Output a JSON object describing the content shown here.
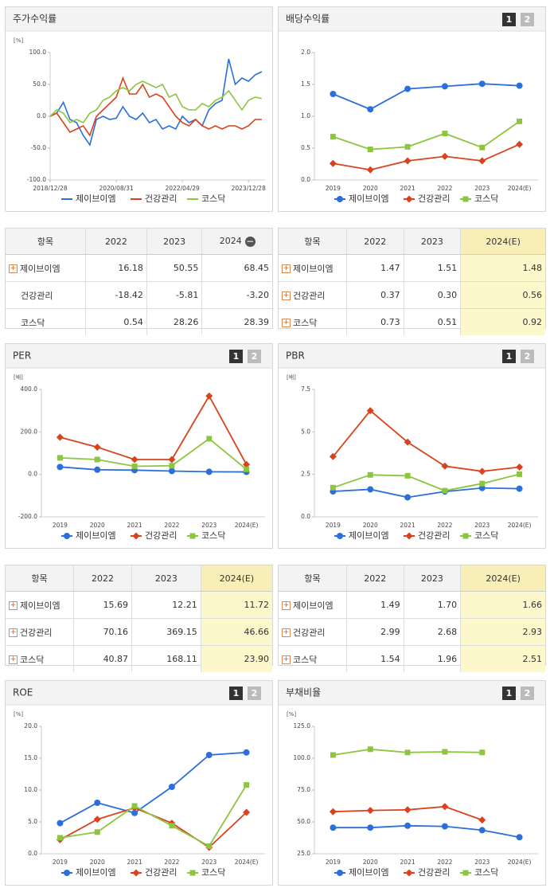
{
  "chart_data": [
    {
      "type": "line",
      "title": "주가수익률",
      "unit": "[%]",
      "xlim": [
        0,
        65
      ],
      "xticks": [
        {
          "value": 0,
          "label": "2018/12/28"
        },
        {
          "value": 20,
          "label": "2020/08/31"
        },
        {
          "value": 40,
          "label": "2022/04/29"
        },
        {
          "value": 60,
          "label": "2023/12/28"
        }
      ],
      "ylim": [
        -100,
        100
      ],
      "yticks": [
        {
          "value": 100,
          "label": "100.0"
        },
        {
          "value": 50,
          "label": "50.0"
        },
        {
          "value": 0,
          "label": "0.0"
        },
        {
          "value": -50,
          "label": "-50.0"
        },
        {
          "value": -100,
          "label": "-100.0"
        }
      ],
      "x": [
        0,
        2,
        4,
        6,
        8,
        10,
        12,
        14,
        16,
        18,
        20,
        22,
        24,
        26,
        28,
        30,
        32,
        34,
        36,
        38,
        40,
        42,
        44,
        46,
        48,
        50,
        52,
        54,
        56,
        58,
        60,
        62,
        64
      ],
      "series": [
        {
          "name": "제이브이엠",
          "color": "#2a6fdb",
          "values": [
            0,
            5,
            22,
            -5,
            -10,
            -30,
            -45,
            -5,
            0,
            -5,
            -3,
            15,
            0,
            -5,
            5,
            -10,
            -5,
            -20,
            -15,
            -20,
            0,
            -10,
            -5,
            -15,
            10,
            20,
            25,
            90,
            50,
            60,
            55,
            65,
            70
          ]
        },
        {
          "name": "건강관리",
          "color": "#d9421a",
          "values": [
            0,
            5,
            -10,
            -25,
            -20,
            -15,
            -30,
            0,
            10,
            20,
            30,
            60,
            35,
            35,
            50,
            30,
            35,
            30,
            15,
            0,
            -10,
            -15,
            -5,
            -15,
            -20,
            -15,
            -20,
            -15,
            -15,
            -20,
            -15,
            -5,
            -5
          ]
        },
        {
          "name": "코스닥",
          "color": "#8cc63f",
          "values": [
            0,
            10,
            5,
            -10,
            -5,
            -10,
            5,
            10,
            25,
            30,
            40,
            45,
            40,
            50,
            55,
            50,
            45,
            50,
            30,
            35,
            15,
            10,
            10,
            20,
            15,
            25,
            30,
            40,
            25,
            10,
            25,
            30,
            28
          ]
        }
      ]
    },
    {
      "type": "line",
      "title": "배당수익률",
      "buttons": [
        "1",
        "2"
      ],
      "unit": "",
      "categories": [
        "2019",
        "2020",
        "2021",
        "2022",
        "2023",
        "2024(E)"
      ],
      "ylim": [
        0,
        2
      ],
      "yticks": [
        {
          "value": 2,
          "label": "2.0"
        },
        {
          "value": 1.5,
          "label": "1.5"
        },
        {
          "value": 1,
          "label": "1.0"
        },
        {
          "value": 0.5,
          "label": "0.5"
        },
        {
          "value": 0,
          "label": "0.0"
        }
      ],
      "series": [
        {
          "name": "제이브이엠",
          "color": "#2a6fdb",
          "marker": "circle",
          "values": [
            1.35,
            1.11,
            1.43,
            1.47,
            1.51,
            1.48
          ]
        },
        {
          "name": "건강관리",
          "color": "#d9421a",
          "marker": "diamond",
          "values": [
            0.26,
            0.16,
            0.3,
            0.37,
            0.3,
            0.56
          ]
        },
        {
          "name": "코스닥",
          "color": "#8cc63f",
          "marker": "square",
          "values": [
            0.68,
            0.48,
            0.52,
            0.73,
            0.51,
            0.92
          ]
        }
      ]
    },
    {
      "type": "line",
      "title": "PER",
      "buttons": [
        "1",
        "2"
      ],
      "unit": "[배]",
      "categories": [
        "2019",
        "2020",
        "2021",
        "2022",
        "2023",
        "2024(E)"
      ],
      "ylim": [
        -200,
        400
      ],
      "yticks": [
        {
          "value": 400,
          "label": "400.0"
        },
        {
          "value": 200,
          "label": "200.0"
        },
        {
          "value": 0,
          "label": "0.0"
        },
        {
          "value": -200,
          "label": "-200.0"
        }
      ],
      "series": [
        {
          "name": "제이브이엠",
          "color": "#2a6fdb",
          "marker": "circle",
          "values": [
            35,
            22,
            20,
            15.69,
            12.21,
            11.72
          ]
        },
        {
          "name": "건강관리",
          "color": "#d9421a",
          "marker": "diamond",
          "values": [
            175,
            128,
            70,
            70.16,
            369.15,
            46.66
          ]
        },
        {
          "name": "코스닥",
          "color": "#8cc63f",
          "marker": "square",
          "values": [
            78,
            70,
            38,
            40.87,
            168.11,
            23.9
          ]
        }
      ]
    },
    {
      "type": "line",
      "title": "PBR",
      "buttons": [
        "1",
        "2"
      ],
      "unit": "[배]",
      "categories": [
        "2019",
        "2020",
        "2021",
        "2022",
        "2023",
        "2024(E)"
      ],
      "ylim": [
        0,
        7.5
      ],
      "yticks": [
        {
          "value": 7.5,
          "label": "7.5"
        },
        {
          "value": 5,
          "label": "5.0"
        },
        {
          "value": 2.5,
          "label": "2.5"
        },
        {
          "value": 0,
          "label": "0.0"
        }
      ],
      "series": [
        {
          "name": "제이브이엠",
          "color": "#2a6fdb",
          "marker": "circle",
          "values": [
            1.5,
            1.62,
            1.15,
            1.49,
            1.7,
            1.66
          ]
        },
        {
          "name": "건강관리",
          "color": "#d9421a",
          "marker": "diamond",
          "values": [
            3.55,
            6.25,
            4.4,
            2.99,
            2.68,
            2.93
          ]
        },
        {
          "name": "코스닥",
          "color": "#8cc63f",
          "marker": "square",
          "values": [
            1.72,
            2.47,
            2.42,
            1.54,
            1.96,
            2.51
          ]
        }
      ]
    },
    {
      "type": "line",
      "title": "ROE",
      "buttons": [
        "1",
        "2"
      ],
      "unit": "[%]",
      "categories": [
        "2019",
        "2020",
        "2021",
        "2022",
        "2023",
        "2024(E)"
      ],
      "ylim": [
        0,
        20
      ],
      "yticks": [
        {
          "value": 20,
          "label": "20.0"
        },
        {
          "value": 15,
          "label": "15.0"
        },
        {
          "value": 10,
          "label": "10.0"
        },
        {
          "value": 5,
          "label": "5.0"
        },
        {
          "value": 0,
          "label": "0.0"
        }
      ],
      "series": [
        {
          "name": "제이브이엠",
          "color": "#2a6fdb",
          "marker": "circle",
          "values": [
            4.8,
            8.0,
            6.4,
            10.5,
            15.5,
            15.9
          ]
        },
        {
          "name": "건강관리",
          "color": "#d9421a",
          "marker": "diamond",
          "values": [
            2.2,
            5.4,
            7.2,
            4.8,
            1.0,
            6.5
          ]
        },
        {
          "name": "코스닥",
          "color": "#8cc63f",
          "marker": "square",
          "values": [
            2.5,
            3.4,
            7.5,
            4.4,
            1.2,
            10.8
          ]
        }
      ]
    },
    {
      "type": "line",
      "title": "부채비율",
      "buttons": [
        "1",
        "2"
      ],
      "unit": "[%]",
      "categories": [
        "2019",
        "2020",
        "2021",
        "2022",
        "2023",
        "2024(E)"
      ],
      "ylim": [
        25,
        125
      ],
      "yticks": [
        {
          "value": 125,
          "label": "125.0"
        },
        {
          "value": 100,
          "label": "100.0"
        },
        {
          "value": 75,
          "label": "75.0"
        },
        {
          "value": 50,
          "label": "50.0"
        },
        {
          "value": 25,
          "label": "25.0"
        }
      ],
      "series": [
        {
          "name": "제이브이엠",
          "color": "#2a6fdb",
          "marker": "circle",
          "values": [
            45.5,
            45.5,
            47,
            46.5,
            43.5,
            38
          ]
        },
        {
          "name": "건강관리",
          "color": "#d9421a",
          "marker": "diamond",
          "values": [
            58,
            59,
            59.5,
            62,
            51.5,
            null
          ]
        },
        {
          "name": "코스닥",
          "color": "#8cc63f",
          "marker": "square",
          "values": [
            102.5,
            107,
            104.5,
            105,
            104.5,
            null
          ]
        }
      ]
    }
  ],
  "tables": [
    {
      "headers": [
        "항목",
        "2022",
        "2023",
        "2024"
      ],
      "rows": [
        {
          "name": "제이브이엠",
          "values": [
            "16.18",
            "50.55",
            "68.45"
          ]
        },
        {
          "name": "건강관리",
          "values": [
            "-18.42",
            "-5.81",
            "-3.20"
          ]
        },
        {
          "name": "코스닥",
          "values": [
            "0.54",
            "28.26",
            "28.39"
          ]
        }
      ]
    },
    {
      "headers": [
        "항목",
        "2022",
        "2023",
        "2024(E)"
      ],
      "highlight_color": "#fdf7cc",
      "rows": [
        {
          "name": "제이브이엠",
          "values": [
            "1.47",
            "1.51",
            "1.48"
          ]
        },
        {
          "name": "건강관리",
          "values": [
            "0.37",
            "0.30",
            "0.56"
          ]
        },
        {
          "name": "코스닥",
          "values": [
            "0.73",
            "0.51",
            "0.92"
          ]
        }
      ]
    },
    {
      "headers": [
        "항목",
        "2022",
        "2023",
        "2024(E)"
      ],
      "highlight_color": "#fdf7cc",
      "rows": [
        {
          "name": "제이브이엠",
          "values": [
            "15.69",
            "12.21",
            "11.72"
          ]
        },
        {
          "name": "건강관리",
          "values": [
            "70.16",
            "369.15",
            "46.66"
          ]
        },
        {
          "name": "코스닥",
          "values": [
            "40.87",
            "168.11",
            "23.90"
          ]
        }
      ]
    },
    {
      "headers": [
        "항목",
        "2022",
        "2023",
        "2024(E)"
      ],
      "highlight_color": "#fdf7cc",
      "rows": [
        {
          "name": "제이브이엠",
          "values": [
            "1.49",
            "1.70",
            "1.66"
          ]
        },
        {
          "name": "건강관리",
          "values": [
            "2.99",
            "2.68",
            "2.93"
          ]
        },
        {
          "name": "코스닥",
          "values": [
            "1.54",
            "1.96",
            "2.51"
          ]
        }
      ]
    }
  ]
}
